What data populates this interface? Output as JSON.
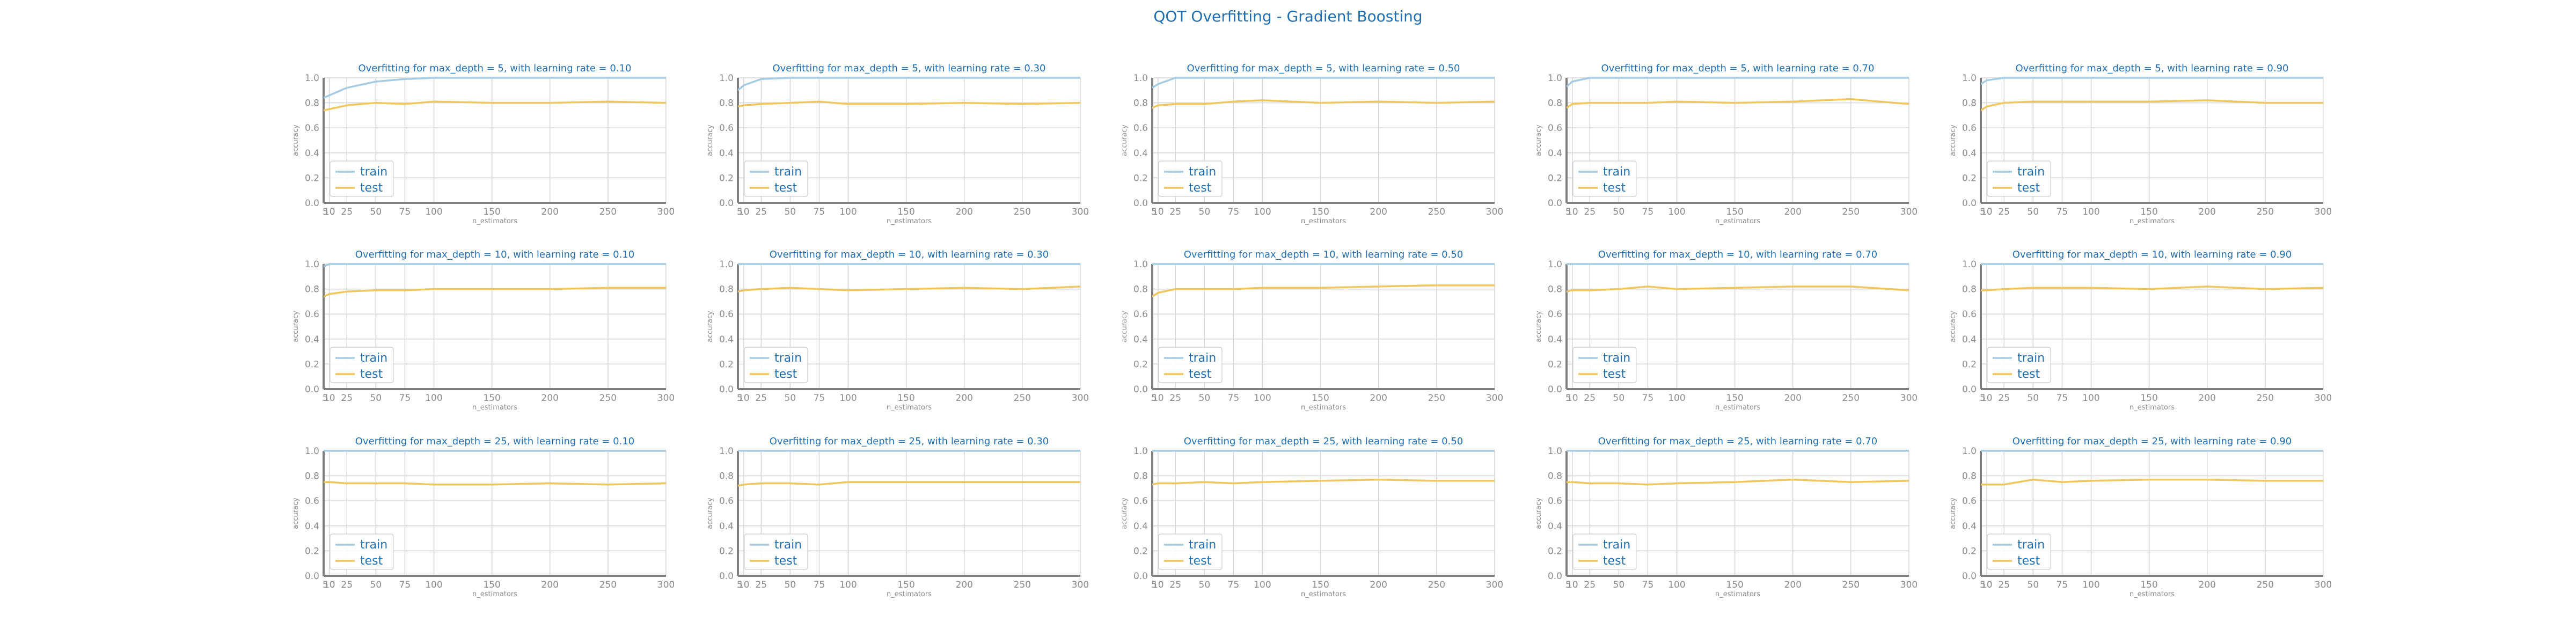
{
  "title": "QOT Overfitting - Gradient Boosting",
  "colors": {
    "train": "#a6cce3",
    "test": "#f0c75e",
    "text": "#1f6fb2",
    "grid": "#d5d5d5",
    "axis": "#7f7f7f"
  },
  "chart_data": [
    {
      "type": "line",
      "title": "Overfitting for max_depth = 5, with learning rate = 0.10",
      "xlabel": "n_estimators",
      "ylabel": "accuracy",
      "xticks": [
        5,
        10,
        25,
        50,
        75,
        100,
        150,
        200,
        250,
        300
      ],
      "yticks": [
        0.0,
        0.2,
        0.4,
        0.6,
        0.8,
        1.0
      ],
      "xlim": [
        5,
        300
      ],
      "ylim": [
        0,
        1
      ],
      "grid": true,
      "legend": "lower-left",
      "x": [
        5,
        10,
        25,
        50,
        75,
        100,
        150,
        200,
        250,
        300
      ],
      "series": [
        {
          "name": "train",
          "values": [
            0.84,
            0.86,
            0.92,
            0.97,
            0.99,
            1.0,
            1.0,
            1.0,
            1.0,
            1.0
          ]
        },
        {
          "name": "test",
          "values": [
            0.74,
            0.75,
            0.78,
            0.8,
            0.79,
            0.81,
            0.8,
            0.8,
            0.81,
            0.8
          ]
        }
      ]
    },
    {
      "type": "line",
      "title": "Overfitting for max_depth = 5, with learning rate = 0.30",
      "xlabel": "n_estimators",
      "ylabel": "accuracy",
      "xticks": [
        5,
        10,
        25,
        50,
        75,
        100,
        150,
        200,
        250,
        300
      ],
      "yticks": [
        0.0,
        0.2,
        0.4,
        0.6,
        0.8,
        1.0
      ],
      "xlim": [
        5,
        300
      ],
      "ylim": [
        0,
        1
      ],
      "grid": true,
      "legend": "lower-left",
      "x": [
        5,
        10,
        25,
        50,
        75,
        100,
        150,
        200,
        250,
        300
      ],
      "series": [
        {
          "name": "train",
          "values": [
            0.9,
            0.94,
            0.99,
            1.0,
            1.0,
            1.0,
            1.0,
            1.0,
            1.0,
            1.0
          ]
        },
        {
          "name": "test",
          "values": [
            0.77,
            0.78,
            0.79,
            0.8,
            0.81,
            0.79,
            0.79,
            0.8,
            0.79,
            0.8
          ]
        }
      ]
    },
    {
      "type": "line",
      "title": "Overfitting for max_depth = 5, with learning rate = 0.50",
      "xlabel": "n_estimators",
      "ylabel": "accuracy",
      "xticks": [
        5,
        10,
        25,
        50,
        75,
        100,
        150,
        200,
        250,
        300
      ],
      "yticks": [
        0.0,
        0.2,
        0.4,
        0.6,
        0.8,
        1.0
      ],
      "xlim": [
        5,
        300
      ],
      "ylim": [
        0,
        1
      ],
      "grid": true,
      "legend": "lower-left",
      "x": [
        5,
        10,
        25,
        50,
        75,
        100,
        150,
        200,
        250,
        300
      ],
      "series": [
        {
          "name": "train",
          "values": [
            0.92,
            0.95,
            1.0,
            1.0,
            1.0,
            1.0,
            1.0,
            1.0,
            1.0,
            1.0
          ]
        },
        {
          "name": "test",
          "values": [
            0.76,
            0.78,
            0.79,
            0.79,
            0.81,
            0.82,
            0.8,
            0.81,
            0.8,
            0.81
          ]
        }
      ]
    },
    {
      "type": "line",
      "title": "Overfitting for max_depth = 5, with learning rate = 0.70",
      "xlabel": "n_estimators",
      "ylabel": "accuracy",
      "xticks": [
        5,
        10,
        25,
        50,
        75,
        100,
        150,
        200,
        250,
        300
      ],
      "yticks": [
        0.0,
        0.2,
        0.4,
        0.6,
        0.8,
        1.0
      ],
      "xlim": [
        5,
        300
      ],
      "ylim": [
        0,
        1
      ],
      "grid": true,
      "legend": "lower-left",
      "x": [
        5,
        10,
        25,
        50,
        75,
        100,
        150,
        200,
        250,
        300
      ],
      "series": [
        {
          "name": "train",
          "values": [
            0.93,
            0.97,
            1.0,
            1.0,
            1.0,
            1.0,
            1.0,
            1.0,
            1.0,
            1.0
          ]
        },
        {
          "name": "test",
          "values": [
            0.76,
            0.79,
            0.8,
            0.8,
            0.8,
            0.81,
            0.8,
            0.81,
            0.83,
            0.79
          ]
        }
      ]
    },
    {
      "type": "line",
      "title": "Overfitting for max_depth = 5, with learning rate = 0.90",
      "xlabel": "n_estimators",
      "ylabel": "accuracy",
      "xticks": [
        5,
        10,
        25,
        50,
        75,
        100,
        150,
        200,
        250,
        300
      ],
      "yticks": [
        0.0,
        0.2,
        0.4,
        0.6,
        0.8,
        1.0
      ],
      "xlim": [
        5,
        300
      ],
      "ylim": [
        0,
        1
      ],
      "grid": true,
      "legend": "lower-left",
      "x": [
        5,
        10,
        25,
        50,
        75,
        100,
        150,
        200,
        250,
        300
      ],
      "series": [
        {
          "name": "train",
          "values": [
            0.95,
            0.98,
            1.0,
            1.0,
            1.0,
            1.0,
            1.0,
            1.0,
            1.0,
            1.0
          ]
        },
        {
          "name": "test",
          "values": [
            0.74,
            0.77,
            0.8,
            0.81,
            0.81,
            0.81,
            0.81,
            0.82,
            0.8,
            0.8
          ]
        }
      ]
    },
    {
      "type": "line",
      "title": "Overfitting for max_depth = 10, with learning rate = 0.10",
      "xlabel": "n_estimators",
      "ylabel": "accuracy",
      "xticks": [
        5,
        10,
        25,
        50,
        75,
        100,
        150,
        200,
        250,
        300
      ],
      "yticks": [
        0.0,
        0.2,
        0.4,
        0.6,
        0.8,
        1.0
      ],
      "xlim": [
        5,
        300
      ],
      "ylim": [
        0,
        1
      ],
      "grid": true,
      "legend": "lower-left",
      "x": [
        5,
        10,
        25,
        50,
        75,
        100,
        150,
        200,
        250,
        300
      ],
      "series": [
        {
          "name": "train",
          "values": [
            0.98,
            1.0,
            1.0,
            1.0,
            1.0,
            1.0,
            1.0,
            1.0,
            1.0,
            1.0
          ]
        },
        {
          "name": "test",
          "values": [
            0.74,
            0.76,
            0.78,
            0.79,
            0.79,
            0.8,
            0.8,
            0.8,
            0.81,
            0.81
          ]
        }
      ]
    },
    {
      "type": "line",
      "title": "Overfitting for max_depth = 10, with learning rate = 0.30",
      "xlabel": "n_estimators",
      "ylabel": "accuracy",
      "xticks": [
        5,
        10,
        25,
        50,
        75,
        100,
        150,
        200,
        250,
        300
      ],
      "yticks": [
        0.0,
        0.2,
        0.4,
        0.6,
        0.8,
        1.0
      ],
      "xlim": [
        5,
        300
      ],
      "ylim": [
        0,
        1
      ],
      "grid": true,
      "legend": "lower-left",
      "x": [
        5,
        10,
        25,
        50,
        75,
        100,
        150,
        200,
        250,
        300
      ],
      "series": [
        {
          "name": "train",
          "values": [
            1.0,
            1.0,
            1.0,
            1.0,
            1.0,
            1.0,
            1.0,
            1.0,
            1.0,
            1.0
          ]
        },
        {
          "name": "test",
          "values": [
            0.78,
            0.79,
            0.8,
            0.81,
            0.8,
            0.79,
            0.8,
            0.81,
            0.8,
            0.82
          ]
        }
      ]
    },
    {
      "type": "line",
      "title": "Overfitting for max_depth = 10, with learning rate = 0.50",
      "xlabel": "n_estimators",
      "ylabel": "accuracy",
      "xticks": [
        5,
        10,
        25,
        50,
        75,
        100,
        150,
        200,
        250,
        300
      ],
      "yticks": [
        0.0,
        0.2,
        0.4,
        0.6,
        0.8,
        1.0
      ],
      "xlim": [
        5,
        300
      ],
      "ylim": [
        0,
        1
      ],
      "grid": true,
      "legend": "lower-left",
      "x": [
        5,
        10,
        25,
        50,
        75,
        100,
        150,
        200,
        250,
        300
      ],
      "series": [
        {
          "name": "train",
          "values": [
            1.0,
            1.0,
            1.0,
            1.0,
            1.0,
            1.0,
            1.0,
            1.0,
            1.0,
            1.0
          ]
        },
        {
          "name": "test",
          "values": [
            0.74,
            0.77,
            0.8,
            0.8,
            0.8,
            0.81,
            0.81,
            0.82,
            0.83,
            0.83
          ]
        }
      ]
    },
    {
      "type": "line",
      "title": "Overfitting for max_depth = 10, with learning rate = 0.70",
      "xlabel": "n_estimators",
      "ylabel": "accuracy",
      "xticks": [
        5,
        10,
        25,
        50,
        75,
        100,
        150,
        200,
        250,
        300
      ],
      "yticks": [
        0.0,
        0.2,
        0.4,
        0.6,
        0.8,
        1.0
      ],
      "xlim": [
        5,
        300
      ],
      "ylim": [
        0,
        1
      ],
      "grid": true,
      "legend": "lower-left",
      "x": [
        5,
        10,
        25,
        50,
        75,
        100,
        150,
        200,
        250,
        300
      ],
      "series": [
        {
          "name": "train",
          "values": [
            1.0,
            1.0,
            1.0,
            1.0,
            1.0,
            1.0,
            1.0,
            1.0,
            1.0,
            1.0
          ]
        },
        {
          "name": "test",
          "values": [
            0.78,
            0.79,
            0.79,
            0.8,
            0.82,
            0.8,
            0.81,
            0.82,
            0.82,
            0.79
          ]
        }
      ]
    },
    {
      "type": "line",
      "title": "Overfitting for max_depth = 10, with learning rate = 0.90",
      "xlabel": "n_estimators",
      "ylabel": "accuracy",
      "xticks": [
        5,
        10,
        25,
        50,
        75,
        100,
        150,
        200,
        250,
        300
      ],
      "yticks": [
        0.0,
        0.2,
        0.4,
        0.6,
        0.8,
        1.0
      ],
      "xlim": [
        5,
        300
      ],
      "ylim": [
        0,
        1
      ],
      "grid": true,
      "legend": "lower-left",
      "x": [
        5,
        10,
        25,
        50,
        75,
        100,
        150,
        200,
        250,
        300
      ],
      "series": [
        {
          "name": "train",
          "values": [
            1.0,
            1.0,
            1.0,
            1.0,
            1.0,
            1.0,
            1.0,
            1.0,
            1.0,
            1.0
          ]
        },
        {
          "name": "test",
          "values": [
            0.79,
            0.79,
            0.8,
            0.81,
            0.81,
            0.81,
            0.8,
            0.82,
            0.8,
            0.81
          ]
        }
      ]
    },
    {
      "type": "line",
      "title": "Overfitting for max_depth = 25, with learning rate = 0.10",
      "xlabel": "n_estimators",
      "ylabel": "accuracy",
      "xticks": [
        5,
        10,
        25,
        50,
        75,
        100,
        150,
        200,
        250,
        300
      ],
      "yticks": [
        0.0,
        0.2,
        0.4,
        0.6,
        0.8,
        1.0
      ],
      "xlim": [
        5,
        300
      ],
      "ylim": [
        0,
        1
      ],
      "grid": true,
      "legend": "lower-left",
      "x": [
        5,
        10,
        25,
        50,
        75,
        100,
        150,
        200,
        250,
        300
      ],
      "series": [
        {
          "name": "train",
          "values": [
            1.0,
            1.0,
            1.0,
            1.0,
            1.0,
            1.0,
            1.0,
            1.0,
            1.0,
            1.0
          ]
        },
        {
          "name": "test",
          "values": [
            0.75,
            0.75,
            0.74,
            0.74,
            0.74,
            0.73,
            0.73,
            0.74,
            0.73,
            0.74
          ]
        }
      ]
    },
    {
      "type": "line",
      "title": "Overfitting for max_depth = 25, with learning rate = 0.30",
      "xlabel": "n_estimators",
      "ylabel": "accuracy",
      "xticks": [
        5,
        10,
        25,
        50,
        75,
        100,
        150,
        200,
        250,
        300
      ],
      "yticks": [
        0.0,
        0.2,
        0.4,
        0.6,
        0.8,
        1.0
      ],
      "xlim": [
        5,
        300
      ],
      "ylim": [
        0,
        1
      ],
      "grid": true,
      "legend": "lower-left",
      "x": [
        5,
        10,
        25,
        50,
        75,
        100,
        150,
        200,
        250,
        300
      ],
      "series": [
        {
          "name": "train",
          "values": [
            1.0,
            1.0,
            1.0,
            1.0,
            1.0,
            1.0,
            1.0,
            1.0,
            1.0,
            1.0
          ]
        },
        {
          "name": "test",
          "values": [
            0.72,
            0.73,
            0.74,
            0.74,
            0.73,
            0.75,
            0.75,
            0.75,
            0.75,
            0.75
          ]
        }
      ]
    },
    {
      "type": "line",
      "title": "Overfitting for max_depth = 25, with learning rate = 0.50",
      "xlabel": "n_estimators",
      "ylabel": "accuracy",
      "xticks": [
        5,
        10,
        25,
        50,
        75,
        100,
        150,
        200,
        250,
        300
      ],
      "yticks": [
        0.0,
        0.2,
        0.4,
        0.6,
        0.8,
        1.0
      ],
      "xlim": [
        5,
        300
      ],
      "ylim": [
        0,
        1
      ],
      "grid": true,
      "legend": "lower-left",
      "x": [
        5,
        10,
        25,
        50,
        75,
        100,
        150,
        200,
        250,
        300
      ],
      "series": [
        {
          "name": "train",
          "values": [
            1.0,
            1.0,
            1.0,
            1.0,
            1.0,
            1.0,
            1.0,
            1.0,
            1.0,
            1.0
          ]
        },
        {
          "name": "test",
          "values": [
            0.73,
            0.74,
            0.74,
            0.75,
            0.74,
            0.75,
            0.76,
            0.77,
            0.76,
            0.76
          ]
        }
      ]
    },
    {
      "type": "line",
      "title": "Overfitting for max_depth = 25, with learning rate = 0.70",
      "xlabel": "n_estimators",
      "ylabel": "accuracy",
      "xticks": [
        5,
        10,
        25,
        50,
        75,
        100,
        150,
        200,
        250,
        300
      ],
      "yticks": [
        0.0,
        0.2,
        0.4,
        0.6,
        0.8,
        1.0
      ],
      "xlim": [
        5,
        300
      ],
      "ylim": [
        0,
        1
      ],
      "grid": true,
      "legend": "lower-left",
      "x": [
        5,
        10,
        25,
        50,
        75,
        100,
        150,
        200,
        250,
        300
      ],
      "series": [
        {
          "name": "train",
          "values": [
            1.0,
            1.0,
            1.0,
            1.0,
            1.0,
            1.0,
            1.0,
            1.0,
            1.0,
            1.0
          ]
        },
        {
          "name": "test",
          "values": [
            0.75,
            0.75,
            0.74,
            0.74,
            0.73,
            0.74,
            0.75,
            0.77,
            0.75,
            0.76
          ]
        }
      ]
    },
    {
      "type": "line",
      "title": "Overfitting for max_depth = 25, with learning rate = 0.90",
      "xlabel": "n_estimators",
      "ylabel": "accuracy",
      "xticks": [
        5,
        10,
        25,
        50,
        75,
        100,
        150,
        200,
        250,
        300
      ],
      "yticks": [
        0.0,
        0.2,
        0.4,
        0.6,
        0.8,
        1.0
      ],
      "xlim": [
        5,
        300
      ],
      "ylim": [
        0,
        1
      ],
      "grid": true,
      "legend": "lower-left",
      "x": [
        5,
        10,
        25,
        50,
        75,
        100,
        150,
        200,
        250,
        300
      ],
      "series": [
        {
          "name": "train",
          "values": [
            1.0,
            1.0,
            1.0,
            1.0,
            1.0,
            1.0,
            1.0,
            1.0,
            1.0,
            1.0
          ]
        },
        {
          "name": "test",
          "values": [
            0.73,
            0.73,
            0.73,
            0.77,
            0.75,
            0.76,
            0.77,
            0.77,
            0.76,
            0.76
          ]
        }
      ]
    }
  ]
}
